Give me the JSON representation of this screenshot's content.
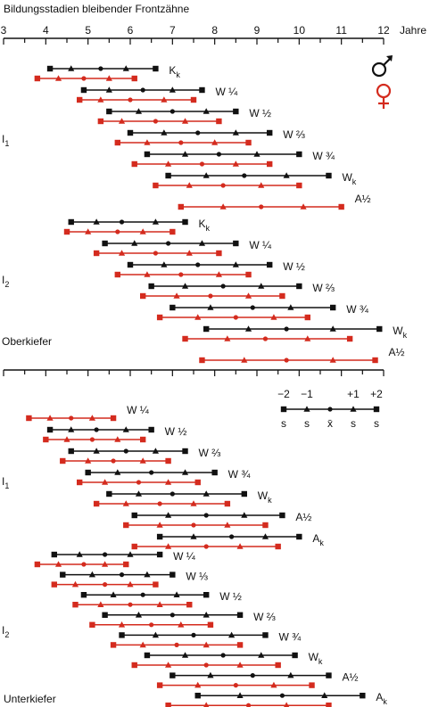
{
  "chart_data": {
    "type": "range",
    "title": "Bildungsstadien bleibender Frontzähne",
    "unit_label": "Jahre",
    "xlim": [
      3,
      12
    ],
    "x_ticks": [
      3,
      4,
      5,
      6,
      7,
      8,
      9,
      10,
      11,
      12
    ],
    "colors": {
      "male": "#111111",
      "female": "#d42b1e"
    },
    "legend": {
      "sd_labels": [
        "−2",
        "−1",
        "+1",
        "+2"
      ],
      "point_labels": [
        "s",
        "s",
        "x̄",
        "s",
        "s"
      ]
    },
    "jaws": [
      {
        "name": "Oberkiefer",
        "teeth": [
          {
            "name": "I1",
            "stages": [
              {
                "label": "Kk",
                "male": [
                  4.1,
                  4.6,
                  5.3,
                  5.9,
                  6.6
                ],
                "female": [
                  3.8,
                  4.3,
                  4.9,
                  5.5,
                  6.1
                ]
              },
              {
                "label": "W¼",
                "male": [
                  4.9,
                  5.5,
                  6.3,
                  7.0,
                  7.7
                ],
                "female": [
                  4.8,
                  5.3,
                  6.0,
                  6.8,
                  7.5
                ]
              },
              {
                "label": "W½",
                "male": [
                  5.5,
                  6.2,
                  7.0,
                  7.8,
                  8.5
                ],
                "female": [
                  5.3,
                  5.8,
                  6.6,
                  7.3,
                  8.1
                ]
              },
              {
                "label": "W⅔",
                "male": [
                  6.0,
                  6.8,
                  7.6,
                  8.5,
                  9.3
                ],
                "female": [
                  5.7,
                  6.4,
                  7.2,
                  8.0,
                  8.8
                ]
              },
              {
                "label": "W¾",
                "male": [
                  6.4,
                  7.3,
                  8.1,
                  9.0,
                  10.0
                ],
                "female": [
                  6.1,
                  6.9,
                  7.7,
                  8.5,
                  9.3
                ]
              },
              {
                "label": "Wk",
                "male": [
                  6.9,
                  7.8,
                  8.7,
                  9.7,
                  10.7
                ],
                "female": [
                  6.6,
                  7.4,
                  8.2,
                  9.1,
                  10.0
                ]
              },
              {
                "label": "A½",
                "male": null,
                "female": [
                  7.2,
                  8.2,
                  9.1,
                  10.1,
                  11.0
                ]
              }
            ]
          },
          {
            "name": "I2",
            "stages": [
              {
                "label": "Kk",
                "male": [
                  4.6,
                  5.2,
                  5.8,
                  6.6,
                  7.3
                ],
                "female": [
                  4.5,
                  5.0,
                  5.7,
                  6.3,
                  7.0
                ]
              },
              {
                "label": "W¼",
                "male": [
                  5.4,
                  6.1,
                  6.9,
                  7.7,
                  8.5
                ],
                "female": [
                  5.2,
                  5.8,
                  6.6,
                  7.4,
                  8.1
                ]
              },
              {
                "label": "W½",
                "male": [
                  6.0,
                  6.8,
                  7.6,
                  8.5,
                  9.3
                ],
                "female": [
                  5.7,
                  6.4,
                  7.2,
                  8.1,
                  8.8
                ]
              },
              {
                "label": "W⅔",
                "male": [
                  6.5,
                  7.3,
                  8.2,
                  9.1,
                  10.0
                ],
                "female": [
                  6.3,
                  7.1,
                  7.9,
                  8.8,
                  9.6
                ]
              },
              {
                "label": "W¾",
                "male": [
                  7.0,
                  7.9,
                  8.9,
                  9.8,
                  10.8
                ],
                "female": [
                  6.7,
                  7.6,
                  8.5,
                  9.4,
                  10.2
                ]
              },
              {
                "label": "Wk",
                "male": [
                  7.8,
                  8.8,
                  9.7,
                  10.8,
                  11.9
                ],
                "female": [
                  7.3,
                  8.3,
                  9.2,
                  10.2,
                  11.2
                ]
              },
              {
                "label": "A½",
                "male": null,
                "female": [
                  7.7,
                  8.7,
                  9.7,
                  10.8,
                  11.8
                ]
              }
            ]
          }
        ]
      },
      {
        "name": "Unterkiefer",
        "teeth": [
          {
            "name": "I1",
            "stages": [
              {
                "label": "W¼",
                "male": null,
                "female": [
                  3.6,
                  4.1,
                  4.6,
                  5.1,
                  5.6
                ]
              },
              {
                "label": "W½",
                "male": [
                  4.1,
                  4.6,
                  5.2,
                  5.9,
                  6.5
                ],
                "female": [
                  4.0,
                  4.5,
                  5.1,
                  5.7,
                  6.3
                ]
              },
              {
                "label": "W⅔",
                "male": [
                  4.6,
                  5.2,
                  5.9,
                  6.6,
                  7.3
                ],
                "female": [
                  4.4,
                  5.0,
                  5.6,
                  6.3,
                  6.9
                ]
              },
              {
                "label": "W¾",
                "male": [
                  5.0,
                  5.7,
                  6.5,
                  7.3,
                  8.0
                ],
                "female": [
                  4.8,
                  5.4,
                  6.2,
                  6.9,
                  7.6
                ]
              },
              {
                "label": "Wk",
                "male": [
                  5.5,
                  6.2,
                  7.0,
                  7.8,
                  8.7
                ],
                "female": [
                  5.2,
                  5.9,
                  6.7,
                  7.5,
                  8.3
                ]
              },
              {
                "label": "A½",
                "male": [
                  6.1,
                  6.9,
                  7.8,
                  8.7,
                  9.6
                ],
                "female": [
                  5.9,
                  6.7,
                  7.5,
                  8.3,
                  9.2
                ]
              },
              {
                "label": "Ak",
                "male": [
                  6.7,
                  7.5,
                  8.4,
                  9.2,
                  10.0
                ],
                "female": [
                  6.1,
                  6.9,
                  7.8,
                  8.6,
                  9.5
                ]
              }
            ]
          },
          {
            "name": "I2",
            "stages": [
              {
                "label": "W¼",
                "male": [
                  4.2,
                  4.8,
                  5.4,
                  6.0,
                  6.7
                ],
                "female": [
                  3.8,
                  4.3,
                  4.9,
                  5.4,
                  5.9
                ]
              },
              {
                "label": "W⅓",
                "male": [
                  4.4,
                  5.1,
                  5.8,
                  6.4,
                  7.0
                ],
                "female": [
                  4.2,
                  4.7,
                  5.4,
                  6.0,
                  6.6
                ]
              },
              {
                "label": "W½",
                "male": [
                  4.9,
                  5.6,
                  6.3,
                  7.1,
                  7.8
                ],
                "female": [
                  4.7,
                  5.3,
                  6.0,
                  6.7,
                  7.4
                ]
              },
              {
                "label": "W⅔",
                "male": [
                  5.4,
                  6.2,
                  7.0,
                  7.8,
                  8.6
                ],
                "female": [
                  5.1,
                  5.8,
                  6.5,
                  7.2,
                  7.9
                ]
              },
              {
                "label": "W¾",
                "male": [
                  5.8,
                  6.6,
                  7.5,
                  8.4,
                  9.2
                ],
                "female": [
                  5.6,
                  6.3,
                  7.1,
                  7.8,
                  8.6
                ]
              },
              {
                "label": "Wk",
                "male": [
                  6.4,
                  7.3,
                  8.2,
                  9.1,
                  9.9
                ],
                "female": [
                  6.1,
                  6.9,
                  7.8,
                  8.6,
                  9.5
                ]
              },
              {
                "label": "A½",
                "male": [
                  7.0,
                  7.9,
                  8.9,
                  9.8,
                  10.7
                ],
                "female": [
                  6.7,
                  7.6,
                  8.5,
                  9.4,
                  10.3
                ]
              },
              {
                "label": "Ak",
                "male": [
                  7.6,
                  8.6,
                  9.6,
                  10.6,
                  11.5
                ],
                "female": [
                  6.9,
                  7.8,
                  8.8,
                  9.7,
                  10.7
                ]
              }
            ]
          }
        ]
      }
    ]
  }
}
